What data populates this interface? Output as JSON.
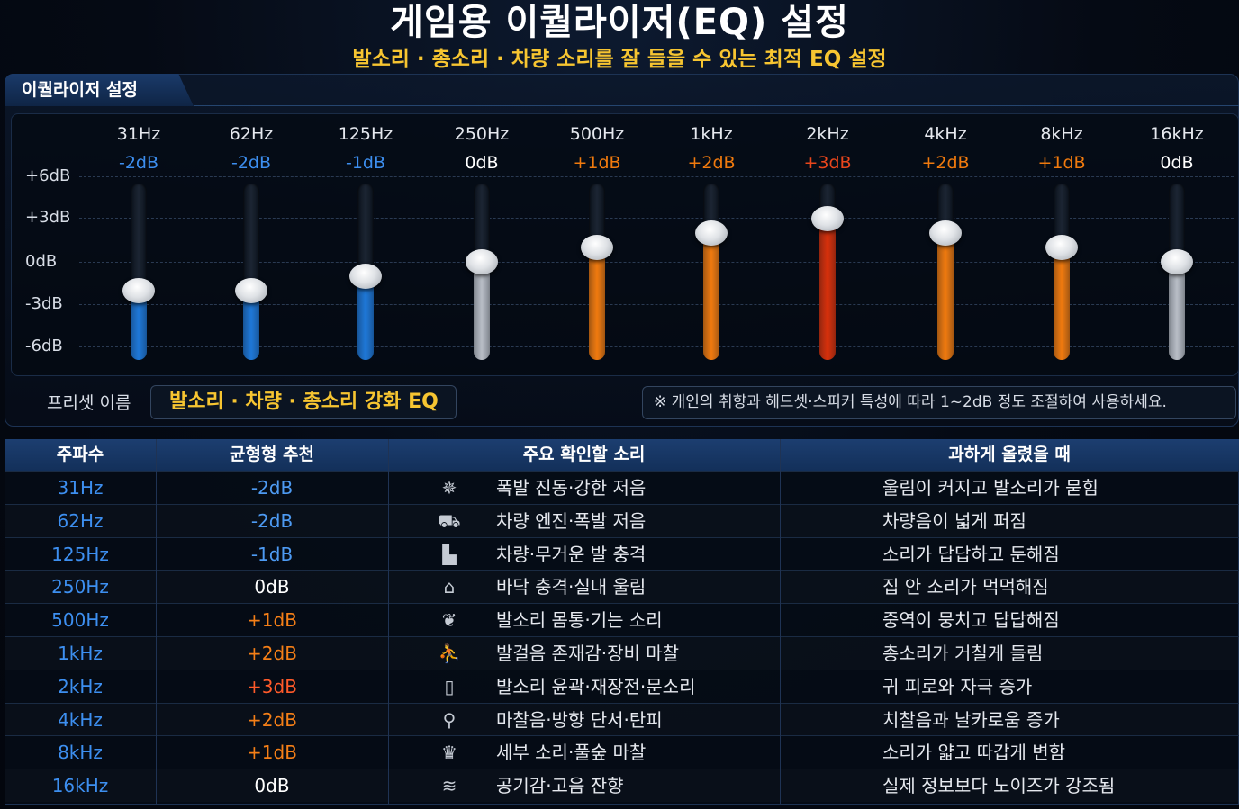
{
  "header": {
    "title": "게임용 이퀄라이저(EQ) 설정",
    "subtitle": "발소리 · 총소리 · 차량 소리를 잘 들을 수 있는 최적 EQ 설정"
  },
  "panel": {
    "tab_label": "이퀄라이저 설정",
    "db_scale": [
      "+6dB",
      "+3dB",
      "0dB",
      "-3dB",
      "-6dB"
    ],
    "bands": [
      {
        "freq": "31Hz",
        "gain_label": "-2dB",
        "gain": -2,
        "color": "#1e78d8"
      },
      {
        "freq": "62Hz",
        "gain_label": "-2dB",
        "gain": -2,
        "color": "#1e78d8"
      },
      {
        "freq": "125Hz",
        "gain_label": "-1dB",
        "gain": -1,
        "color": "#1e78d8"
      },
      {
        "freq": "250Hz",
        "gain_label": "0dB",
        "gain": 0,
        "color": "#b9bec6"
      },
      {
        "freq": "500Hz",
        "gain_label": "+1dB",
        "gain": 1,
        "color": "#f07a0e"
      },
      {
        "freq": "1kHz",
        "gain_label": "+2dB",
        "gain": 2,
        "color": "#f07a0e"
      },
      {
        "freq": "2kHz",
        "gain_label": "+3dB",
        "gain": 3,
        "color": "#d8300a"
      },
      {
        "freq": "4kHz",
        "gain_label": "+2dB",
        "gain": 2,
        "color": "#f07a0e"
      },
      {
        "freq": "8kHz",
        "gain_label": "+1dB",
        "gain": 1,
        "color": "#f07a0e"
      },
      {
        "freq": "16kHz",
        "gain_label": "0dB",
        "gain": 0,
        "color": "#b9bec6"
      }
    ],
    "preset_label": "프리셋 이름",
    "preset_name": "발소리 · 차량 · 총소리 강화 EQ",
    "note": "※ 개인의 취향과 헤드셋·스피커 특성에 따라 1~2dB 정도 조절하여 사용하세요."
  },
  "table": {
    "headers": [
      "주파수",
      "균형형 추천",
      "주요 확인할 소리",
      "과하게 올렸을 때"
    ],
    "rows": [
      {
        "freq": "31Hz",
        "gain": "-2dB",
        "icon": "explosion-icon",
        "glyph": "✵",
        "sound": "폭발 진동·강한 저음",
        "over": "울림이 커지고 발소리가 묻힘"
      },
      {
        "freq": "62Hz",
        "gain": "-2dB",
        "icon": "car-icon",
        "glyph": "⛟",
        "sound": "차량 엔진·폭발 저음",
        "over": "차량음이 넓게 퍼짐"
      },
      {
        "freq": "125Hz",
        "gain": "-1dB",
        "icon": "boot-icon",
        "glyph": "▙",
        "sound": "차량·무거운 발 충격",
        "over": "소리가 답답하고 둔해짐"
      },
      {
        "freq": "250Hz",
        "gain": "0dB",
        "icon": "house-icon",
        "glyph": "⌂",
        "sound": "바닥 충격·실내 울림",
        "over": "집 안 소리가 먹먹해짐"
      },
      {
        "freq": "500Hz",
        "gain": "+1dB",
        "icon": "footprint-icon",
        "glyph": "❦",
        "sound": "발소리 몸통·기는 소리",
        "over": "중역이 뭉치고 답답해짐"
      },
      {
        "freq": "1kHz",
        "gain": "+2dB",
        "icon": "walking-person-icon",
        "glyph": "⛹",
        "sound": "발걸음 존재감·장비 마찰",
        "over": "총소리가 거칠게 들림"
      },
      {
        "freq": "2kHz",
        "gain": "+3dB",
        "icon": "door-icon",
        "glyph": "▯",
        "sound": "발소리 윤곽·재장전·문소리",
        "over": "귀 피로와 자극 증가"
      },
      {
        "freq": "4kHz",
        "gain": "+2dB",
        "icon": "bullet-icon",
        "glyph": "⚲",
        "sound": "마찰음·방향 단서·탄피",
        "over": "치찰음과 날카로움 증가"
      },
      {
        "freq": "8kHz",
        "gain": "+1dB",
        "icon": "grass-icon",
        "glyph": "♛",
        "sound": "세부 소리·풀숲 마찰",
        "over": "소리가 얇고 따갑게 변함"
      },
      {
        "freq": "16kHz",
        "gain": "0dB",
        "icon": "wind-icon",
        "glyph": "≋",
        "sound": "공기감·고음 잔향",
        "over": "실제 정보보다 노이즈가 강조됨"
      }
    ]
  },
  "colors": {
    "accent_yellow": "#f7c531",
    "cut_blue": "#3d8ff0",
    "neutral": "#ffffff",
    "boost_orange": "#f07a0e",
    "boost_red": "#e8461c"
  }
}
